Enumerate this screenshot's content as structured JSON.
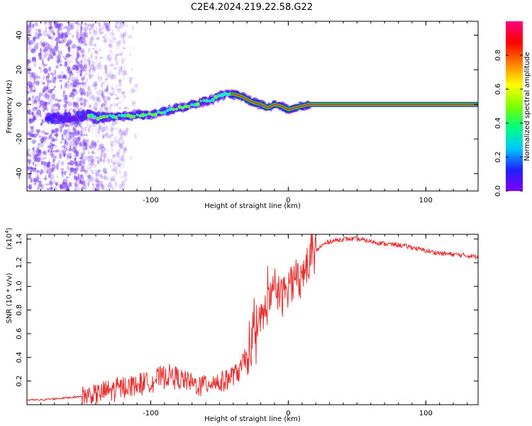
{
  "title": "C2E4.2024.219.22.58.G22",
  "colors": {
    "snr_line": "#e83030",
    "track_core": "#e03c28",
    "track_band": "#1fd24a",
    "scatter": "#7a3cf0",
    "axis": "#000000"
  },
  "chart_data": [
    {
      "type": "heatmap",
      "title": "C2E4.2024.219.22.58.G22",
      "xlabel": "Height of straight line (km)",
      "ylabel": "Frequency (Hz)",
      "xlim": [
        -190,
        138
      ],
      "ylim": [
        -50,
        48
      ],
      "x_ticks": [
        -100,
        0,
        100
      ],
      "x_tick_labels": [
        "-100",
        "0",
        "100"
      ],
      "y_ticks": [
        -40,
        -20,
        0,
        20,
        40
      ],
      "y_tick_labels": [
        "-40",
        "-20",
        "0",
        "20",
        "40"
      ],
      "colorbar": {
        "label": "Normalized spectral amplitude",
        "range": [
          0,
          1
        ],
        "ticks": [
          0.0,
          0.2,
          0.4,
          0.6,
          0.8
        ],
        "tick_labels": [
          "0.0",
          "0.2",
          "0.4",
          "0.6",
          "0.8"
        ],
        "stops": [
          "#8000ff",
          "#2020ff",
          "#00c8ff",
          "#00ff80",
          "#80ff00",
          "#ffff00",
          "#ff8000",
          "#ff0000",
          "#ff0080"
        ]
      },
      "track": {
        "x": [
          -190,
          -175,
          -160,
          -150,
          -145,
          -140,
          -130,
          -120,
          -110,
          -100,
          -90,
          -80,
          -70,
          -60,
          -55,
          -50,
          -45,
          -40,
          -35,
          -30,
          -25,
          -20,
          -15,
          -10,
          -5,
          0,
          5,
          10,
          15,
          138
        ],
        "y": [
          -8,
          -8,
          -8,
          -7,
          -6,
          -8,
          -7,
          -7,
          -6,
          -6,
          -4,
          -2,
          0,
          2,
          3,
          5,
          6,
          6,
          5,
          3,
          1,
          0,
          -2,
          0,
          -1,
          -3,
          -2,
          -1,
          0,
          0
        ]
      }
    },
    {
      "type": "line",
      "xlabel": "Height of straight line (km)",
      "ylabel": "SNR (10 * v/v)",
      "y_multiplier_label": "(x10",
      "y_multiplier_exp": "4",
      "xlim": [
        -190,
        138
      ],
      "ylim": [
        0,
        1.44
      ],
      "x_ticks": [
        -100,
        0,
        100
      ],
      "x_tick_labels": [
        "-100",
        "0",
        "100"
      ],
      "y_ticks": [
        0.2,
        0.4,
        0.6,
        0.8,
        1.0,
        1.2,
        1.4
      ],
      "y_tick_labels": [
        "0.2",
        "0.4",
        "0.6",
        "0.8",
        "1.0",
        "1.2",
        "1.4"
      ],
      "series": [
        {
          "name": "SNR",
          "x": [
            -190,
            -180,
            -170,
            -160,
            -150,
            -140,
            -130,
            -120,
            -110,
            -100,
            -95,
            -90,
            -85,
            -80,
            -75,
            -70,
            -65,
            -60,
            -55,
            -50,
            -45,
            -40,
            -35,
            -30,
            -25,
            -20,
            -15,
            -10,
            -5,
            0,
            5,
            10,
            15,
            20,
            25,
            30,
            40,
            50,
            60,
            70,
            80,
            90,
            100,
            110,
            120,
            130,
            138
          ],
          "values": [
            0.04,
            0.04,
            0.05,
            0.06,
            0.07,
            0.09,
            0.12,
            0.15,
            0.17,
            0.2,
            0.22,
            0.24,
            0.25,
            0.22,
            0.2,
            0.18,
            0.16,
            0.18,
            0.2,
            0.18,
            0.22,
            0.25,
            0.3,
            0.4,
            0.55,
            0.7,
            0.85,
            0.95,
            0.9,
            1.0,
            1.05,
            1.1,
            1.2,
            1.3,
            1.35,
            1.38,
            1.4,
            1.4,
            1.38,
            1.36,
            1.35,
            1.33,
            1.3,
            1.28,
            1.27,
            1.26,
            1.25
          ]
        }
      ]
    }
  ]
}
